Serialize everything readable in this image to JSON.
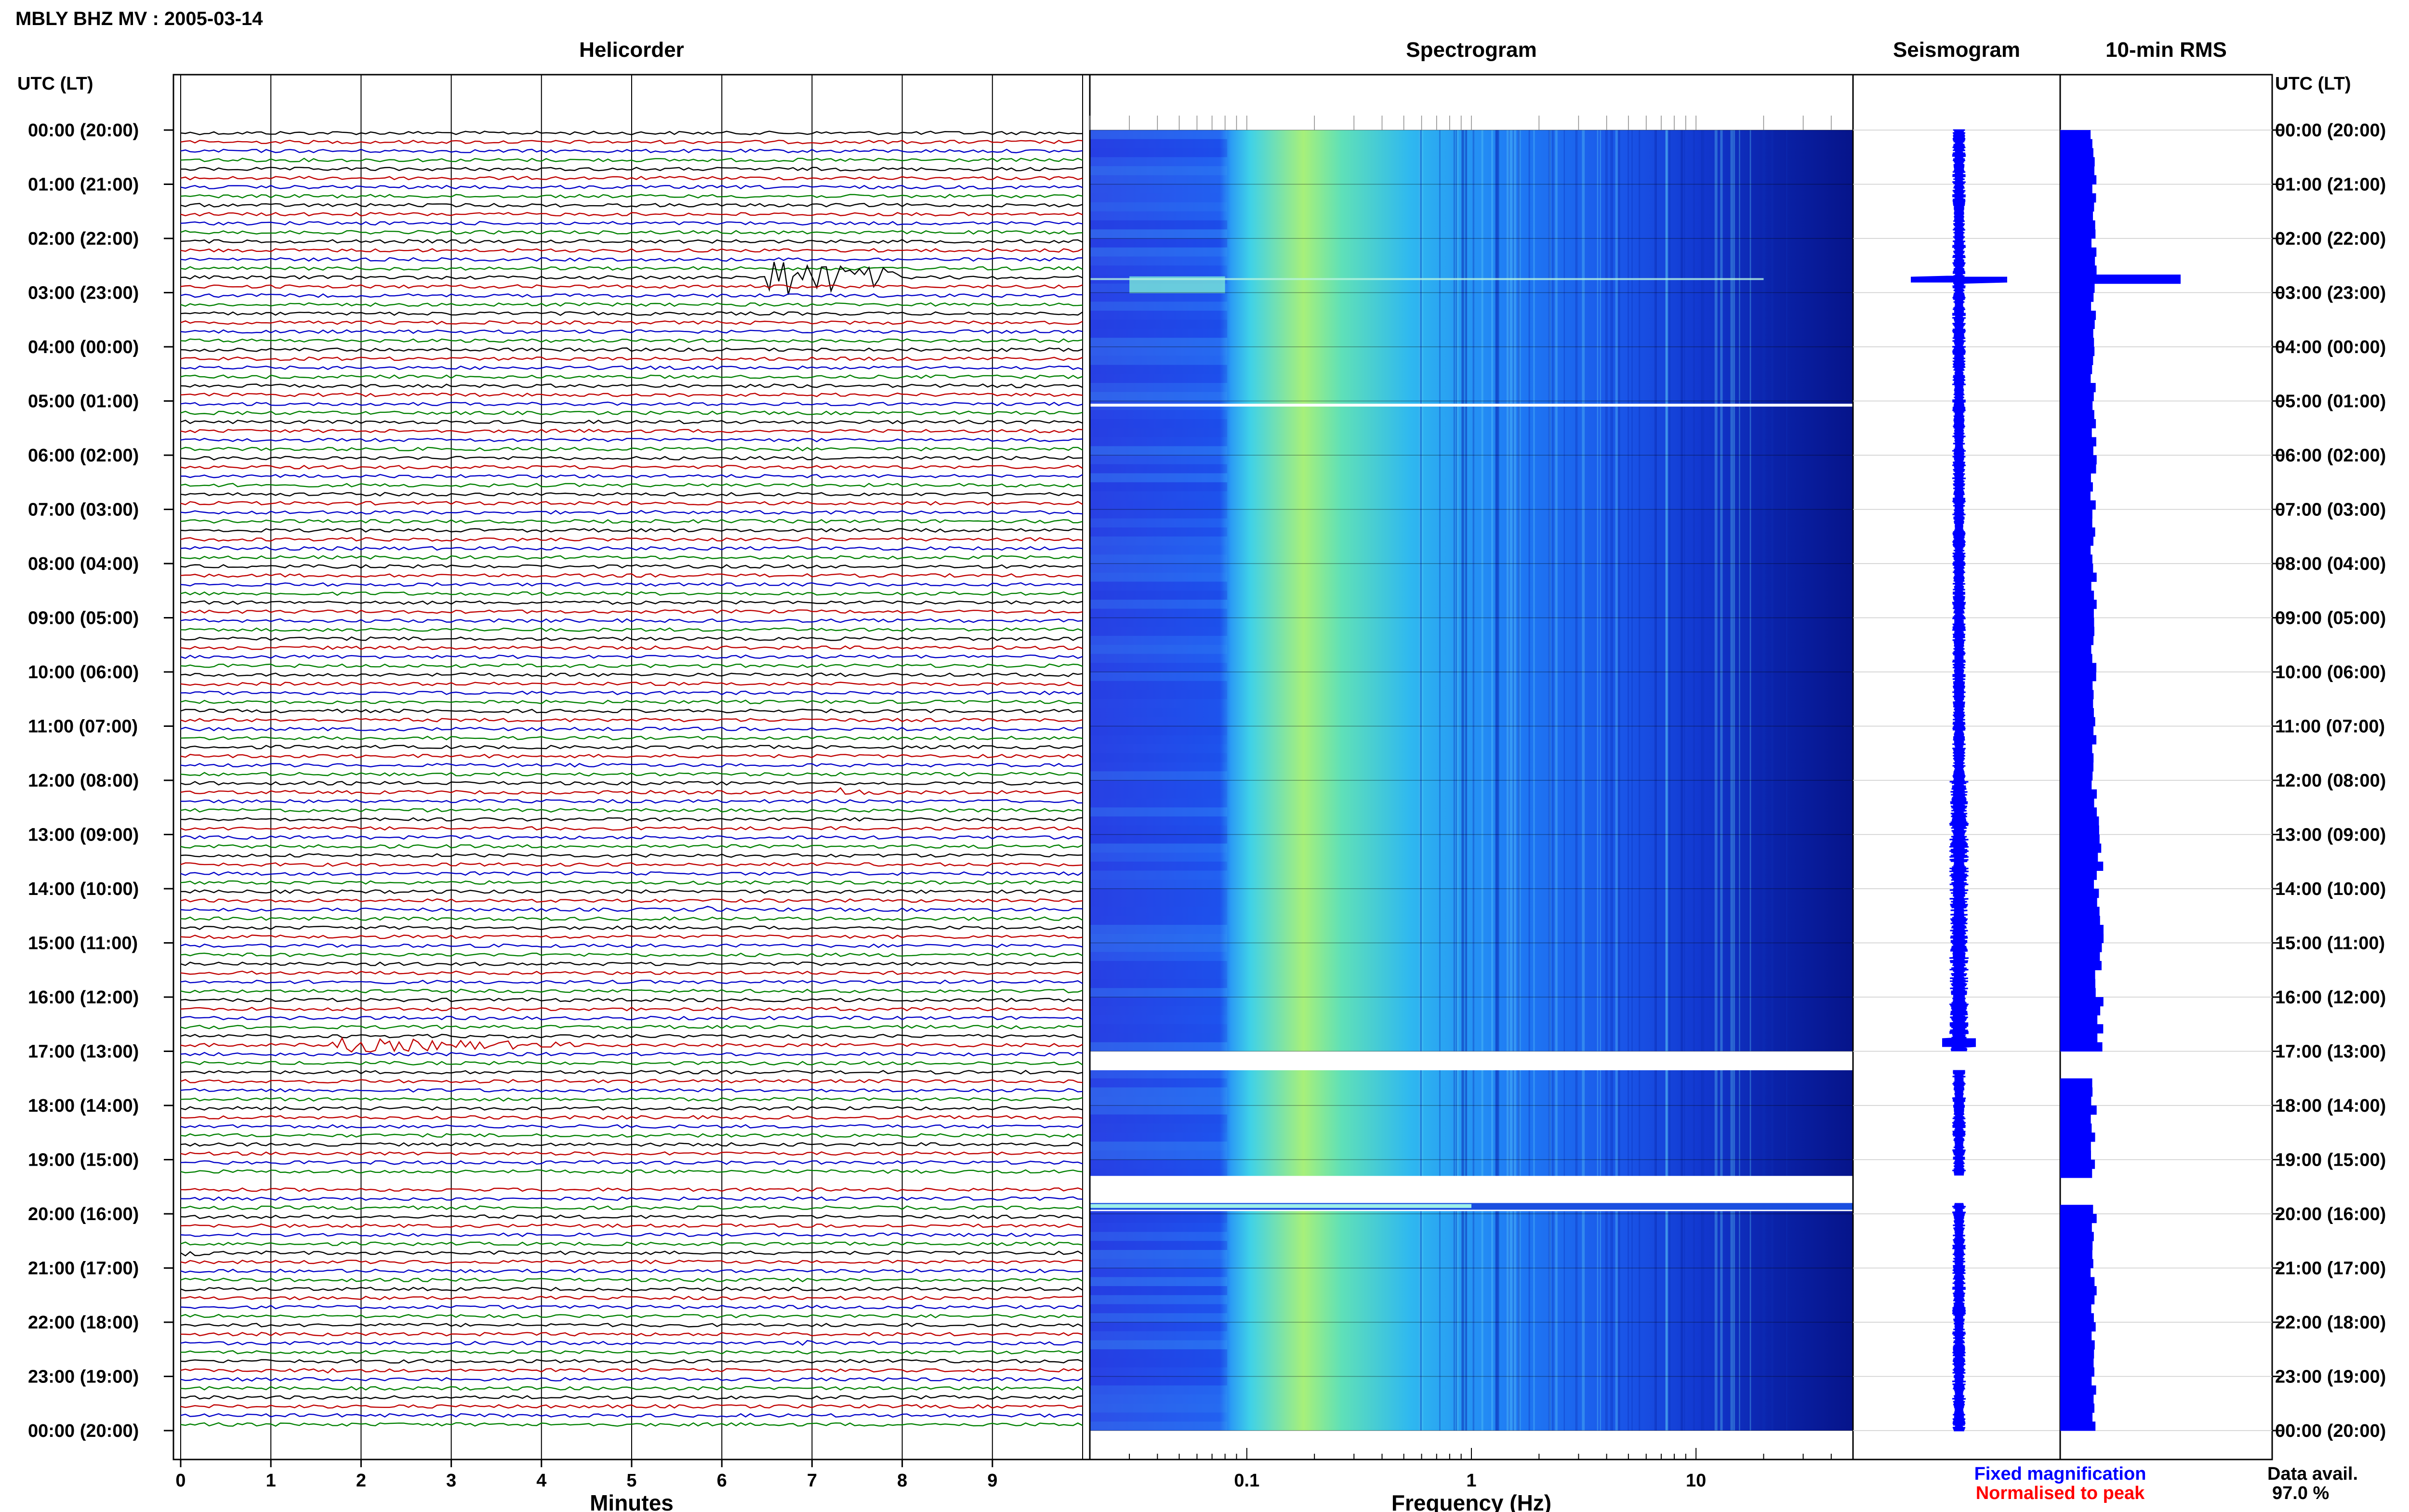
{
  "title": "MBLY BHZ MV : 2005-03-14",
  "time_axis_label_left": "UTC (LT)",
  "time_axis_label_right": "UTC (LT)",
  "time_labels": [
    "00:00 (20:00)",
    "01:00 (21:00)",
    "02:00 (22:00)",
    "03:00 (23:00)",
    "04:00 (00:00)",
    "05:00 (01:00)",
    "06:00 (02:00)",
    "07:00 (03:00)",
    "08:00 (04:00)",
    "09:00 (05:00)",
    "10:00 (06:00)",
    "11:00 (07:00)",
    "12:00 (08:00)",
    "13:00 (09:00)",
    "14:00 (10:00)",
    "15:00 (11:00)",
    "16:00 (12:00)",
    "17:00 (13:00)",
    "18:00 (14:00)",
    "19:00 (15:00)",
    "20:00 (16:00)",
    "21:00 (17:00)",
    "22:00 (18:00)",
    "23:00 (19:00)",
    "00:00 (20:00)"
  ],
  "panels": {
    "helicorder": {
      "title": "Helicorder",
      "xlabel": "Minutes",
      "ticks": [
        "0",
        "1",
        "2",
        "3",
        "4",
        "5",
        "6",
        "7",
        "8",
        "9"
      ],
      "trace_colors": [
        "#000000",
        "#c00000",
        "#0000c8",
        "#008000"
      ],
      "traces_per_hour": 6,
      "events": [
        {
          "hour": 2.6,
          "minute": 6.5,
          "duration": 1.5,
          "amp": "large"
        },
        {
          "hour": 12.1,
          "minute": 7.3,
          "duration": 0.6,
          "amp": "small"
        },
        {
          "hour": 14.3,
          "minute": 5.8,
          "duration": 0.2,
          "amp": "small"
        },
        {
          "hour": 16.0,
          "minute": 6.0,
          "duration": 0.1,
          "amp": "small"
        },
        {
          "hour": 16.8,
          "minute": 1.6,
          "duration": 2.8,
          "amp": "medium"
        },
        {
          "hour": 19.0,
          "minute": 2.2,
          "duration": 0.2,
          "amp": "small"
        },
        {
          "hour": 20.6,
          "minute": 0.0,
          "duration": 0.3,
          "amp": "small"
        },
        {
          "hour": 22.4,
          "minute": 6.8,
          "duration": 0.2,
          "amp": "small"
        },
        {
          "hour": 22.8,
          "minute": 1.6,
          "duration": 0.1,
          "amp": "small"
        }
      ]
    },
    "spectrogram": {
      "title": "Spectrogram",
      "xlabel": "Frequency (Hz)",
      "ticks": [
        "0.1",
        "1",
        "10"
      ],
      "freq_range_hz": [
        0.02,
        50
      ],
      "scale": "log",
      "gaps_hours": [
        [
          5.05,
          5.1
        ],
        [
          17.0,
          17.35
        ],
        [
          19.3,
          19.8
        ],
        [
          19.85,
          19.95
        ]
      ]
    },
    "seismogram": {
      "title": "Seismogram",
      "legend": {
        "fixed": "Fixed magnification",
        "normalised": "Normalised to peak"
      },
      "legend_colors": {
        "fixed": "#0000ff",
        "normalised": "#ff0000"
      }
    },
    "rms": {
      "title": "10-min RMS",
      "bar_color": "#0000ff",
      "data_availability_label": "Data avail.",
      "data_availability_value": "97.0 %"
    }
  },
  "chart_data": {
    "type": "heatmap",
    "title": "MBLY BHZ MV : 2005-03-14",
    "panels": [
      "Helicorder",
      "Spectrogram",
      "Seismogram",
      "10-min RMS"
    ],
    "helicorder_xlabel": "Minutes",
    "helicorder_x_range": [
      0,
      10
    ],
    "spectrogram_xlabel": "Frequency (Hz)",
    "spectrogram_x_range": [
      0.02,
      50
    ],
    "spectrogram_x_scale": "log",
    "y_range_hours": [
      0,
      24
    ],
    "rms_peak_hour": 2.75,
    "data_availability_percent": 97.0
  }
}
